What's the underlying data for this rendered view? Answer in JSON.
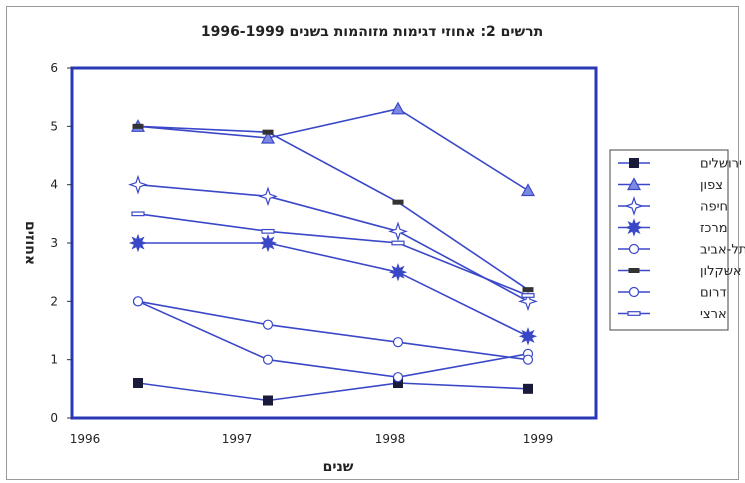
{
  "chart_data": {
    "type": "line",
    "title": "תרשים 2: אחוזי דגימות מזוהמות בשנים 1996-1999",
    "xlabel": "שנים",
    "ylabel": "אחוזים",
    "categories": [
      "1996",
      "1997",
      "1998",
      "1999"
    ],
    "ylim": [
      0,
      6
    ],
    "yticks": [
      "0",
      "1",
      "2",
      "3",
      "4",
      "5",
      "6"
    ],
    "grid": false,
    "legend_position": "right",
    "line_color": "#3a48c8",
    "series": [
      {
        "name": "ירושלים",
        "marker": "square-filled",
        "values": [
          0.6,
          0.3,
          0.6,
          0.5
        ]
      },
      {
        "name": "צפון",
        "marker": "triangle",
        "values": [
          5.0,
          4.8,
          5.3,
          3.9
        ]
      },
      {
        "name": "חיפה",
        "marker": "star4",
        "values": [
          4.0,
          3.8,
          3.2,
          2.0
        ]
      },
      {
        "name": "מרכז",
        "marker": "star-burst",
        "values": [
          3.0,
          3.0,
          2.5,
          1.4
        ]
      },
      {
        "name": "תל-אביב",
        "marker": "circle",
        "values": [
          2.0,
          1.0,
          0.7,
          1.1
        ]
      },
      {
        "name": "אשקלון",
        "marker": "dash-filled",
        "values": [
          5.0,
          4.9,
          3.7,
          2.2
        ]
      },
      {
        "name": "דרום",
        "marker": "circle",
        "values": [
          2.0,
          1.6,
          1.3,
          1.0
        ]
      },
      {
        "name": "ארצי",
        "marker": "dash-open",
        "values": [
          3.5,
          3.2,
          3.0,
          2.1
        ]
      }
    ]
  }
}
